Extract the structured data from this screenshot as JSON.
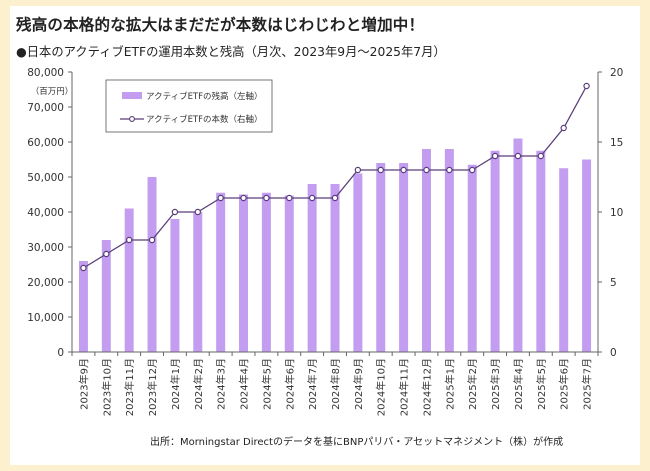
{
  "title": "残高の本格的な拡大はまだだが本数はじわじわと増加中！",
  "subtitle": "●日本のアクティブETFの運用本数と残高（月次、2023年9月～2025年7月）",
  "source": "出所：Morningstar Directのデータを基にBNPパリバ・アセットマネジメント（株）が作成",
  "colors": {
    "bar": "#c39ef0",
    "line": "#5a3e7a",
    "page_bg": "#fdf0cf"
  },
  "chart_data": {
    "type": "bar+line",
    "unit_label": "（百万円）",
    "categories": [
      "2023年9月",
      "2023年10月",
      "2023年11月",
      "2023年12月",
      "2024年1月",
      "2024年2月",
      "2024年3月",
      "2024年4月",
      "2024年5月",
      "2024年6月",
      "2024年7月",
      "2024年8月",
      "2024年9月",
      "2024年10月",
      "2024年11月",
      "2024年12月",
      "2025年1月",
      "2025年2月",
      "2025年3月",
      "2025年4月",
      "2025年5月",
      "2025年6月",
      "2025年7月"
    ],
    "series": [
      {
        "name": "アクティブETFの残高（左軸）",
        "type": "bar",
        "axis": "left",
        "values": [
          26000,
          32000,
          41000,
          50000,
          38000,
          40000,
          45500,
          45000,
          45500,
          44700,
          48000,
          48000,
          51000,
          54000,
          54000,
          58000,
          58000,
          53500,
          57500,
          61000,
          57500,
          52500,
          55000
        ]
      },
      {
        "name": "アクティブETFの本数（右軸）",
        "type": "line",
        "axis": "right",
        "values": [
          6,
          7,
          8,
          8,
          10,
          10,
          11,
          11,
          11,
          11,
          11,
          11,
          13,
          13,
          13,
          13,
          13,
          13,
          14,
          14,
          14,
          16,
          19
        ]
      }
    ],
    "y_left": {
      "min": 0,
      "max": 80000,
      "ticks": [
        "0",
        "10,000",
        "20,000",
        "30,000",
        "40,000",
        "50,000",
        "60,000",
        "70,000",
        "80,000"
      ]
    },
    "y_right": {
      "min": 0,
      "max": 20,
      "ticks": [
        "0",
        "5",
        "10",
        "15",
        "20"
      ]
    },
    "grid": false,
    "legend_position": "top-left"
  }
}
